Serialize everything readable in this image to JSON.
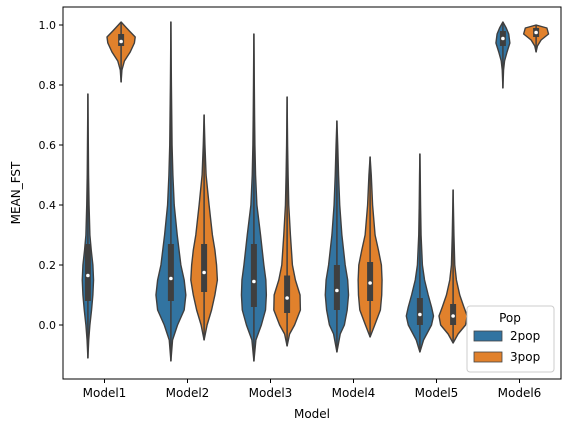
{
  "chart_data": {
    "type": "violin",
    "title": "",
    "xlabel": "Model",
    "ylabel": "MEAN_FST",
    "ylim": [
      -0.18,
      1.06
    ],
    "yticks": [
      "0.0",
      "0.2",
      "0.4",
      "0.6",
      "0.8",
      "1.0"
    ],
    "categories": [
      "Model1",
      "Model2",
      "Model3",
      "Model4",
      "Model5",
      "Model6"
    ],
    "legend": {
      "title": "Pop",
      "position": "lower-right"
    },
    "series": [
      {
        "name": "2pop",
        "color": "#3274a1",
        "violins": [
          {
            "category": "Model1",
            "min": -0.11,
            "max": 0.77,
            "q1": 0.08,
            "median": 0.165,
            "q3": 0.27,
            "widths": [
              [
                -0.11,
                0
              ],
              [
                -0.05,
                0.05
              ],
              [
                0,
                0.12
              ],
              [
                0.05,
                0.22
              ],
              [
                0.1,
                0.3
              ],
              [
                0.15,
                0.34
              ],
              [
                0.2,
                0.3
              ],
              [
                0.25,
                0.2
              ],
              [
                0.3,
                0.12
              ],
              [
                0.4,
                0.07
              ],
              [
                0.5,
                0.04
              ],
              [
                0.6,
                0.025
              ],
              [
                0.7,
                0.01
              ],
              [
                0.77,
                0
              ]
            ]
          },
          {
            "category": "Model2",
            "min": -0.12,
            "max": 1.01,
            "q1": 0.08,
            "median": 0.155,
            "q3": 0.27,
            "widths": [
              [
                -0.12,
                0
              ],
              [
                -0.05,
                0.1
              ],
              [
                0,
                0.4
              ],
              [
                0.05,
                0.8
              ],
              [
                0.1,
                0.9
              ],
              [
                0.15,
                0.8
              ],
              [
                0.2,
                0.6
              ],
              [
                0.3,
                0.38
              ],
              [
                0.4,
                0.2
              ],
              [
                0.5,
                0.12
              ],
              [
                0.6,
                0.07
              ],
              [
                0.7,
                0.05
              ],
              [
                0.8,
                0.03
              ],
              [
                0.9,
                0.015
              ],
              [
                1.01,
                0
              ]
            ]
          },
          {
            "category": "Model3",
            "min": -0.12,
            "max": 0.97,
            "q1": 0.06,
            "median": 0.145,
            "q3": 0.27,
            "widths": [
              [
                -0.12,
                0
              ],
              [
                -0.05,
                0.12
              ],
              [
                0,
                0.45
              ],
              [
                0.05,
                0.7
              ],
              [
                0.1,
                0.75
              ],
              [
                0.15,
                0.72
              ],
              [
                0.2,
                0.6
              ],
              [
                0.3,
                0.4
              ],
              [
                0.4,
                0.18
              ],
              [
                0.5,
                0.1
              ],
              [
                0.6,
                0.06
              ],
              [
                0.7,
                0.04
              ],
              [
                0.8,
                0.025
              ],
              [
                0.9,
                0.012
              ],
              [
                0.97,
                0
              ]
            ]
          },
          {
            "category": "Model4",
            "min": -0.09,
            "max": 0.68,
            "q1": 0.05,
            "median": 0.115,
            "q3": 0.2,
            "widths": [
              [
                -0.09,
                0
              ],
              [
                -0.03,
                0.2
              ],
              [
                0,
                0.45
              ],
              [
                0.05,
                0.62
              ],
              [
                0.1,
                0.7
              ],
              [
                0.15,
                0.65
              ],
              [
                0.2,
                0.5
              ],
              [
                0.3,
                0.3
              ],
              [
                0.4,
                0.17
              ],
              [
                0.5,
                0.1
              ],
              [
                0.6,
                0.05
              ],
              [
                0.68,
                0
              ]
            ]
          },
          {
            "category": "Model5",
            "min": -0.09,
            "max": 0.57,
            "q1": 0.0,
            "median": 0.035,
            "q3": 0.09,
            "widths": [
              [
                -0.09,
                0
              ],
              [
                -0.05,
                0.22
              ],
              [
                0,
                0.7
              ],
              [
                0.03,
                0.82
              ],
              [
                0.06,
                0.7
              ],
              [
                0.1,
                0.5
              ],
              [
                0.15,
                0.28
              ],
              [
                0.2,
                0.15
              ],
              [
                0.3,
                0.07
              ],
              [
                0.4,
                0.04
              ],
              [
                0.5,
                0.02
              ],
              [
                0.57,
                0
              ]
            ]
          },
          {
            "category": "Model6",
            "min": 0.79,
            "max": 1.01,
            "q1": 0.93,
            "median": 0.955,
            "q3": 0.98,
            "widths": [
              [
                0.79,
                0
              ],
              [
                0.85,
                0.04
              ],
              [
                0.88,
                0.1
              ],
              [
                0.91,
                0.25
              ],
              [
                0.94,
                0.42
              ],
              [
                0.97,
                0.35
              ],
              [
                0.99,
                0.2
              ],
              [
                1.01,
                0
              ]
            ]
          }
        ]
      },
      {
        "name": "3pop",
        "color": "#e1812c",
        "violins": [
          {
            "category": "Model1",
            "min": 0.81,
            "max": 1.01,
            "q1": 0.93,
            "median": 0.945,
            "q3": 0.97,
            "widths": [
              [
                0.81,
                0
              ],
              [
                0.85,
                0.05
              ],
              [
                0.88,
                0.2
              ],
              [
                0.91,
                0.55
              ],
              [
                0.94,
                0.8
              ],
              [
                0.96,
                0.85
              ],
              [
                0.98,
                0.5
              ],
              [
                1.01,
                0
              ]
            ]
          },
          {
            "category": "Model2",
            "min": -0.05,
            "max": 0.7,
            "q1": 0.11,
            "median": 0.175,
            "q3": 0.27,
            "widths": [
              [
                -0.05,
                0
              ],
              [
                0,
                0.18
              ],
              [
                0.05,
                0.45
              ],
              [
                0.1,
                0.65
              ],
              [
                0.15,
                0.8
              ],
              [
                0.2,
                0.75
              ],
              [
                0.25,
                0.65
              ],
              [
                0.3,
                0.5
              ],
              [
                0.4,
                0.3
              ],
              [
                0.5,
                0.12
              ],
              [
                0.6,
                0.05
              ],
              [
                0.7,
                0
              ]
            ]
          },
          {
            "category": "Model3",
            "min": -0.07,
            "max": 0.76,
            "q1": 0.04,
            "median": 0.09,
            "q3": 0.165,
            "widths": [
              [
                -0.07,
                0
              ],
              [
                -0.03,
                0.15
              ],
              [
                0,
                0.45
              ],
              [
                0.05,
                0.8
              ],
              [
                0.1,
                0.78
              ],
              [
                0.15,
                0.5
              ],
              [
                0.2,
                0.32
              ],
              [
                0.3,
                0.2
              ],
              [
                0.4,
                0.1
              ],
              [
                0.5,
                0.06
              ],
              [
                0.6,
                0.03
              ],
              [
                0.76,
                0
              ]
            ]
          },
          {
            "category": "Model4",
            "min": -0.04,
            "max": 0.56,
            "q1": 0.08,
            "median": 0.14,
            "q3": 0.21,
            "widths": [
              [
                -0.04,
                0
              ],
              [
                0,
                0.28
              ],
              [
                0.05,
                0.62
              ],
              [
                0.1,
                0.7
              ],
              [
                0.15,
                0.72
              ],
              [
                0.2,
                0.68
              ],
              [
                0.25,
                0.5
              ],
              [
                0.3,
                0.3
              ],
              [
                0.4,
                0.15
              ],
              [
                0.5,
                0.07
              ],
              [
                0.56,
                0
              ]
            ]
          },
          {
            "category": "Model5",
            "min": -0.06,
            "max": 0.45,
            "q1": 0.0,
            "median": 0.03,
            "q3": 0.07,
            "widths": [
              [
                -0.06,
                0
              ],
              [
                -0.03,
                0.3
              ],
              [
                0,
                0.75
              ],
              [
                0.03,
                0.85
              ],
              [
                0.06,
                0.65
              ],
              [
                0.1,
                0.4
              ],
              [
                0.15,
                0.2
              ],
              [
                0.2,
                0.1
              ],
              [
                0.3,
                0.05
              ],
              [
                0.45,
                0
              ]
            ]
          },
          {
            "category": "Model6",
            "min": 0.91,
            "max": 1.0,
            "q1": 0.96,
            "median": 0.975,
            "q3": 0.99,
            "widths": [
              [
                0.91,
                0
              ],
              [
                0.93,
                0.08
              ],
              [
                0.95,
                0.3
              ],
              [
                0.97,
                0.75
              ],
              [
                0.99,
                0.65
              ],
              [
                1.0,
                0
              ]
            ]
          }
        ]
      }
    ]
  }
}
